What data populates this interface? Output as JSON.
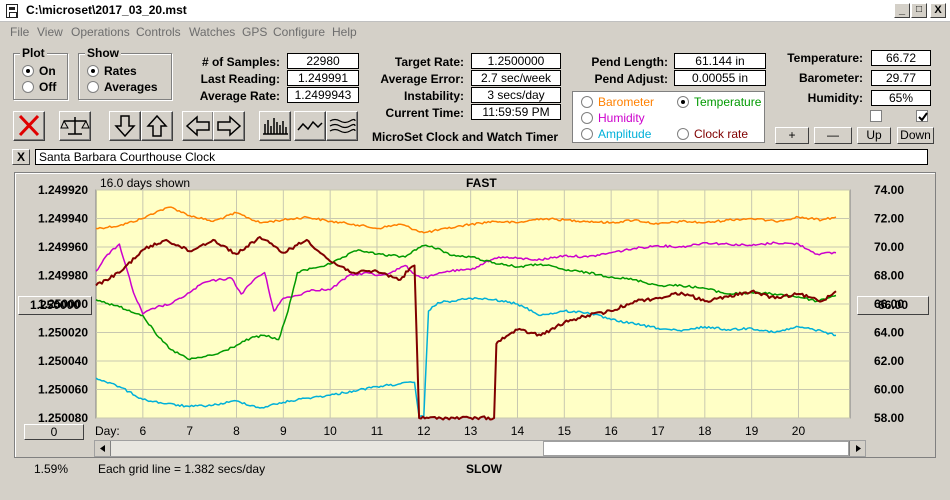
{
  "window": {
    "title": "C:\\microset\\2017_03_20.mst",
    "min": "_",
    "max": "□",
    "close": "X"
  },
  "menu": [
    "File",
    "View",
    "Operations",
    "Controls",
    "Watches",
    "GPS",
    "Configure",
    "Help"
  ],
  "plot": {
    "title": "Plot",
    "on": "On",
    "off": "Off",
    "selected": "On"
  },
  "show": {
    "title": "Show",
    "rates": "Rates",
    "averages": "Averages",
    "selected": "Rates"
  },
  "stats": {
    "samples_label": "# of Samples:",
    "samples": "22980",
    "last_label": "Last Reading:",
    "last": "1.249991",
    "avg_rate_label": "Average Rate:",
    "avg_rate": "1.2499943"
  },
  "target": {
    "rate_label": "Target Rate:",
    "rate": "1.2500000",
    "error_label": "Average Error:",
    "error": "2.7 sec/week",
    "instab_label": "Instability:",
    "instab": "3 secs/day",
    "time_label": "Current Time:",
    "time": "11:59:59 PM"
  },
  "app_name": "MicroSet Clock and Watch Timer",
  "pend": {
    "length_label": "Pend Length:",
    "length": "61.144 in",
    "adjust_label": "Pend Adjust:",
    "adjust": "0.00055 in"
  },
  "sources": {
    "barometer": "Barometer",
    "temperature": "Temperature",
    "humidity": "Humidity",
    "amplitude": "Amplitude",
    "clock_rate": "Clock rate",
    "selected": "Temperature",
    "colors": {
      "barometer": "#ff8000",
      "temperature": "#009900",
      "humidity": "#cc00cc",
      "amplitude": "#00b0d8",
      "clock_rate": "#800000"
    }
  },
  "env": {
    "temp_label": "Temperature:",
    "temp": "66.72",
    "baro_label": "Barometer:",
    "baro": "29.77",
    "hum_label": "Humidity:",
    "hum": "65%"
  },
  "scale_buttons": {
    "plus": "+",
    "minus": "—",
    "up": "Up",
    "down": "Down"
  },
  "clock_name": "Santa Barbara Courthouse Clock",
  "clear_label": "X",
  "toolbar_icons": [
    "close-icon",
    "balance-icon",
    "arrow-down-icon",
    "arrow-up-icon",
    "arrow-left-icon",
    "arrow-right-icon",
    "histogram-icon",
    "line-wave-icon",
    "multi-wave-icon"
  ],
  "chart": {
    "days_shown": "16.0 days shown",
    "fast": "FAST",
    "slow": "SLOW",
    "day_label": "Day:",
    "grid_note": "Each grid line = 1.382 secs/day",
    "left_btn": "1.250000",
    "right_btn": "66.00",
    "bottom_btn": "0",
    "percent": "1.59%"
  },
  "chart_data": {
    "type": "line",
    "left_ticks": [
      "1.249920",
      "1.249940",
      "1.249960",
      "1.249980",
      "1.250000",
      "1.250020",
      "1.250040",
      "1.250060",
      "1.250080"
    ],
    "right_ticks": [
      "74.00",
      "72.00",
      "70.00",
      "68.00",
      "66.00",
      "64.00",
      "62.00",
      "60.00",
      "58.00"
    ],
    "x_ticks": [
      "6",
      "7",
      "8",
      "9",
      "10",
      "11",
      "12",
      "13",
      "14",
      "15",
      "16",
      "17",
      "18",
      "19",
      "20"
    ],
    "x_range": [
      5,
      21.1
    ],
    "left_range": [
      1.24992,
      1.25008
    ],
    "right_range": [
      58,
      74
    ],
    "grid": true,
    "series": [
      {
        "key": "barometer",
        "color": "#ff8000",
        "x": [
          5,
          5.5,
          6,
          6.3,
          6.6,
          7,
          7.5,
          8,
          8.5,
          9,
          9.5,
          10,
          10.5,
          11,
          11.5,
          12,
          12.5,
          13,
          13.5,
          14,
          14.5,
          15,
          15.5,
          16,
          16.5,
          17,
          17.5,
          18,
          18.5,
          19,
          19.5,
          20,
          20.5,
          20.8
        ],
        "y": [
          71.3,
          71.5,
          72,
          72.5,
          72.8,
          72.2,
          71.8,
          72.4,
          71.7,
          71.9,
          72.1,
          71.8,
          71.6,
          71.3,
          71.6,
          71,
          71.3,
          71.6,
          71.8,
          71.7,
          72,
          71.9,
          71.8,
          71.7,
          71.9,
          71.6,
          71.8,
          71.7,
          71.9,
          72,
          71.8,
          72.1,
          71.9,
          72.1
        ]
      },
      {
        "key": "humidity",
        "color": "#cc00cc",
        "x": [
          5,
          5.2,
          5.5,
          5.8,
          6,
          6.3,
          6.6,
          7,
          7.3,
          7.6,
          7.9,
          8.1,
          8.4,
          8.6,
          8.8,
          9,
          9.3,
          9.6,
          10,
          10.4,
          10.8,
          11,
          11.3,
          11.6,
          11.8,
          12,
          12.2,
          12.5,
          13,
          13.3,
          13.6,
          14,
          14.5,
          15,
          15.5,
          16,
          16.5,
          17,
          17.5,
          18,
          18.5,
          19,
          19.5,
          20,
          20.4,
          20.8
        ],
        "y": [
          68.3,
          69.3,
          70.2,
          66.8,
          65.3,
          65.8,
          66,
          66.8,
          67.5,
          67.7,
          67.8,
          66.7,
          67.8,
          68.2,
          65.5,
          66.4,
          66.6,
          67,
          67,
          68,
          68.2,
          68,
          68.2,
          68.7,
          68.1,
          67.8,
          68,
          68.3,
          68.4,
          68.9,
          69.3,
          69.2,
          69.1,
          69.4,
          69.3,
          69.6,
          69.9,
          70.1,
          70,
          70.3,
          70.2,
          70.1,
          70.3,
          70.2,
          69.5,
          69.6
        ]
      },
      {
        "key": "temperature",
        "color": "#009900",
        "x": [
          5,
          5.5,
          6,
          6.3,
          6.6,
          7,
          7.3,
          7.6,
          8,
          8.3,
          8.6,
          8.9,
          9.1,
          9.3,
          9.6,
          10,
          10.3,
          10.6,
          11,
          11.3,
          11.6,
          11.8,
          12,
          12.3,
          12.6,
          13,
          13.5,
          14,
          14.5,
          15,
          15.5,
          16,
          16.5,
          17,
          17.5,
          18,
          18.5,
          19,
          19.5,
          20,
          20.4,
          20.8
        ],
        "y": [
          66.3,
          65.8,
          65.2,
          63.8,
          62.8,
          62.1,
          62.3,
          62.5,
          63.1,
          63.6,
          63.8,
          63.5,
          65.5,
          68.2,
          68.5,
          68.8,
          69.3,
          69.8,
          69.5,
          69.4,
          69.3,
          69.8,
          70.1,
          69.9,
          69.4,
          69.3,
          68.9,
          68.6,
          68.8,
          68.4,
          68.2,
          67.9,
          67.7,
          67.3,
          67.3,
          67.1,
          66.7,
          66.8,
          66.7,
          66.5,
          66.2,
          66.6
        ]
      },
      {
        "key": "amplitude",
        "color": "#00b0d8",
        "x": [
          5,
          5.5,
          6,
          6.5,
          7,
          7.5,
          8,
          8.5,
          9,
          9.5,
          10,
          10.5,
          11,
          11.5,
          11.8,
          11.9,
          12,
          12.1,
          12.3,
          12.6,
          13,
          13.5,
          14,
          14.5,
          15,
          15.5,
          16,
          16.5,
          17,
          17.5,
          18,
          18.5,
          19,
          19.5,
          20,
          20.5,
          20.8
        ],
        "y": [
          60.8,
          60.2,
          59.3,
          59,
          58.8,
          58.9,
          59.2,
          58.7,
          59.1,
          59.4,
          59.6,
          59.9,
          60.2,
          60.4,
          60.5,
          58.1,
          58.1,
          65.5,
          66.1,
          66.2,
          66.4,
          66.3,
          66,
          65.2,
          65.5,
          65.4,
          64.9,
          64.6,
          64.3,
          64.1,
          64.4,
          64.2,
          64.3,
          64,
          64.4,
          64.1,
          63.8
        ]
      },
      {
        "key": "clock_rate",
        "color": "#800000",
        "x": [
          5,
          5.5,
          6,
          6.5,
          7,
          7.5,
          8,
          8.5,
          9,
          9.5,
          10,
          10.5,
          11,
          11.5,
          11.7,
          11.8,
          11.9,
          12.1,
          12.5,
          13,
          13.5,
          13.55,
          13.6,
          13.8,
          14,
          14.5,
          15,
          15.5,
          16,
          16.5,
          17,
          17.5,
          18,
          18.5,
          19,
          19.5,
          20,
          20.5,
          20.8
        ],
        "y": [
          1.249987,
          1.249978,
          1.249962,
          1.249955,
          1.249963,
          1.249955,
          1.249965,
          1.249953,
          1.249964,
          1.249955,
          1.24997,
          1.249978,
          1.249977,
          1.249983,
          1.249975,
          1.249973,
          1.25008,
          1.25008,
          1.25008,
          1.25008,
          1.25008,
          1.250028,
          1.250026,
          1.250022,
          1.250018,
          1.250022,
          1.250013,
          1.250008,
          1.250005,
          1.249998,
          1.249996,
          1.249992,
          1.249998,
          1.249995,
          1.249991,
          1.249996,
          1.249993,
          1.249998,
          1.249991
        ]
      }
    ]
  }
}
